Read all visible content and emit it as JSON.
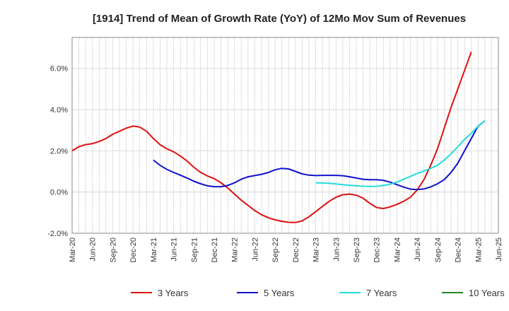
{
  "chart_data": {
    "type": "line",
    "title": "[1914]  Trend of Mean of Growth Rate (YoY) of 12Mo Mov Sum of Revenues",
    "xlabel": "",
    "ylabel": "",
    "ylim": [
      -2.0,
      7.5
    ],
    "y_ticks": [
      -2.0,
      0.0,
      2.0,
      4.0,
      6.0
    ],
    "y_tick_labels": [
      "-2.0%",
      "0.0%",
      "2.0%",
      "4.0%",
      "6.0%"
    ],
    "x_start": "Mar-20",
    "x_months": 63,
    "x_tick_labels": [
      "Mar-20",
      "Jun-20",
      "Sep-20",
      "Dec-20",
      "Mar-21",
      "Jun-21",
      "Sep-21",
      "Dec-21",
      "Mar-22",
      "Jun-22",
      "Sep-22",
      "Dec-22",
      "Mar-23",
      "Jun-23",
      "Sep-23",
      "Dec-23",
      "Mar-24",
      "Jun-24",
      "Sep-24",
      "Dec-24",
      "Mar-25",
      "Jun-25"
    ],
    "grid": true,
    "legend_position": "bottom",
    "series": [
      {
        "name": "3 Years",
        "color": "#dd1111",
        "start_index": 0,
        "values": [
          2.0,
          2.2,
          2.3,
          2.35,
          2.45,
          2.6,
          2.8,
          2.95,
          3.1,
          3.2,
          3.15,
          2.95,
          2.6,
          2.3,
          2.1,
          1.95,
          1.75,
          1.5,
          1.2,
          0.95,
          0.78,
          0.65,
          0.45,
          0.2,
          -0.1,
          -0.4,
          -0.65,
          -0.9,
          -1.1,
          -1.25,
          -1.35,
          -1.42,
          -1.47,
          -1.48,
          -1.4,
          -1.2,
          -0.95,
          -0.7,
          -0.45,
          -0.25,
          -0.13,
          -0.1,
          -0.15,
          -0.3,
          -0.55,
          -0.75,
          -0.8,
          -0.72,
          -0.6,
          -0.45,
          -0.25,
          0.1,
          0.6,
          1.3,
          2.1,
          3.1,
          4.1,
          5.0,
          5.9,
          6.8
        ]
      },
      {
        "name": "5 Years",
        "color": "#1111cc",
        "start_index": 12,
        "values": [
          1.55,
          1.3,
          1.1,
          0.95,
          0.82,
          0.68,
          0.52,
          0.4,
          0.3,
          0.26,
          0.26,
          0.32,
          0.45,
          0.62,
          0.74,
          0.8,
          0.86,
          0.95,
          1.08,
          1.15,
          1.12,
          1.0,
          0.88,
          0.82,
          0.8,
          0.81,
          0.81,
          0.81,
          0.79,
          0.74,
          0.68,
          0.62,
          0.6,
          0.6,
          0.57,
          0.48,
          0.36,
          0.24,
          0.14,
          0.12,
          0.15,
          0.25,
          0.4,
          0.6,
          0.95,
          1.4,
          2.0,
          2.6,
          3.2,
          3.45
        ]
      },
      {
        "name": "7 Years",
        "color": "#22dddd",
        "start_index": 36,
        "values": [
          0.45,
          0.44,
          0.42,
          0.39,
          0.36,
          0.33,
          0.3,
          0.28,
          0.27,
          0.28,
          0.32,
          0.38,
          0.48,
          0.62,
          0.76,
          0.9,
          1.02,
          1.15,
          1.3,
          1.55,
          1.85,
          2.2,
          2.55,
          2.85,
          3.2,
          3.45
        ]
      },
      {
        "name": "10 Years",
        "color": "#228822",
        "start_index": 0,
        "values": []
      }
    ]
  }
}
